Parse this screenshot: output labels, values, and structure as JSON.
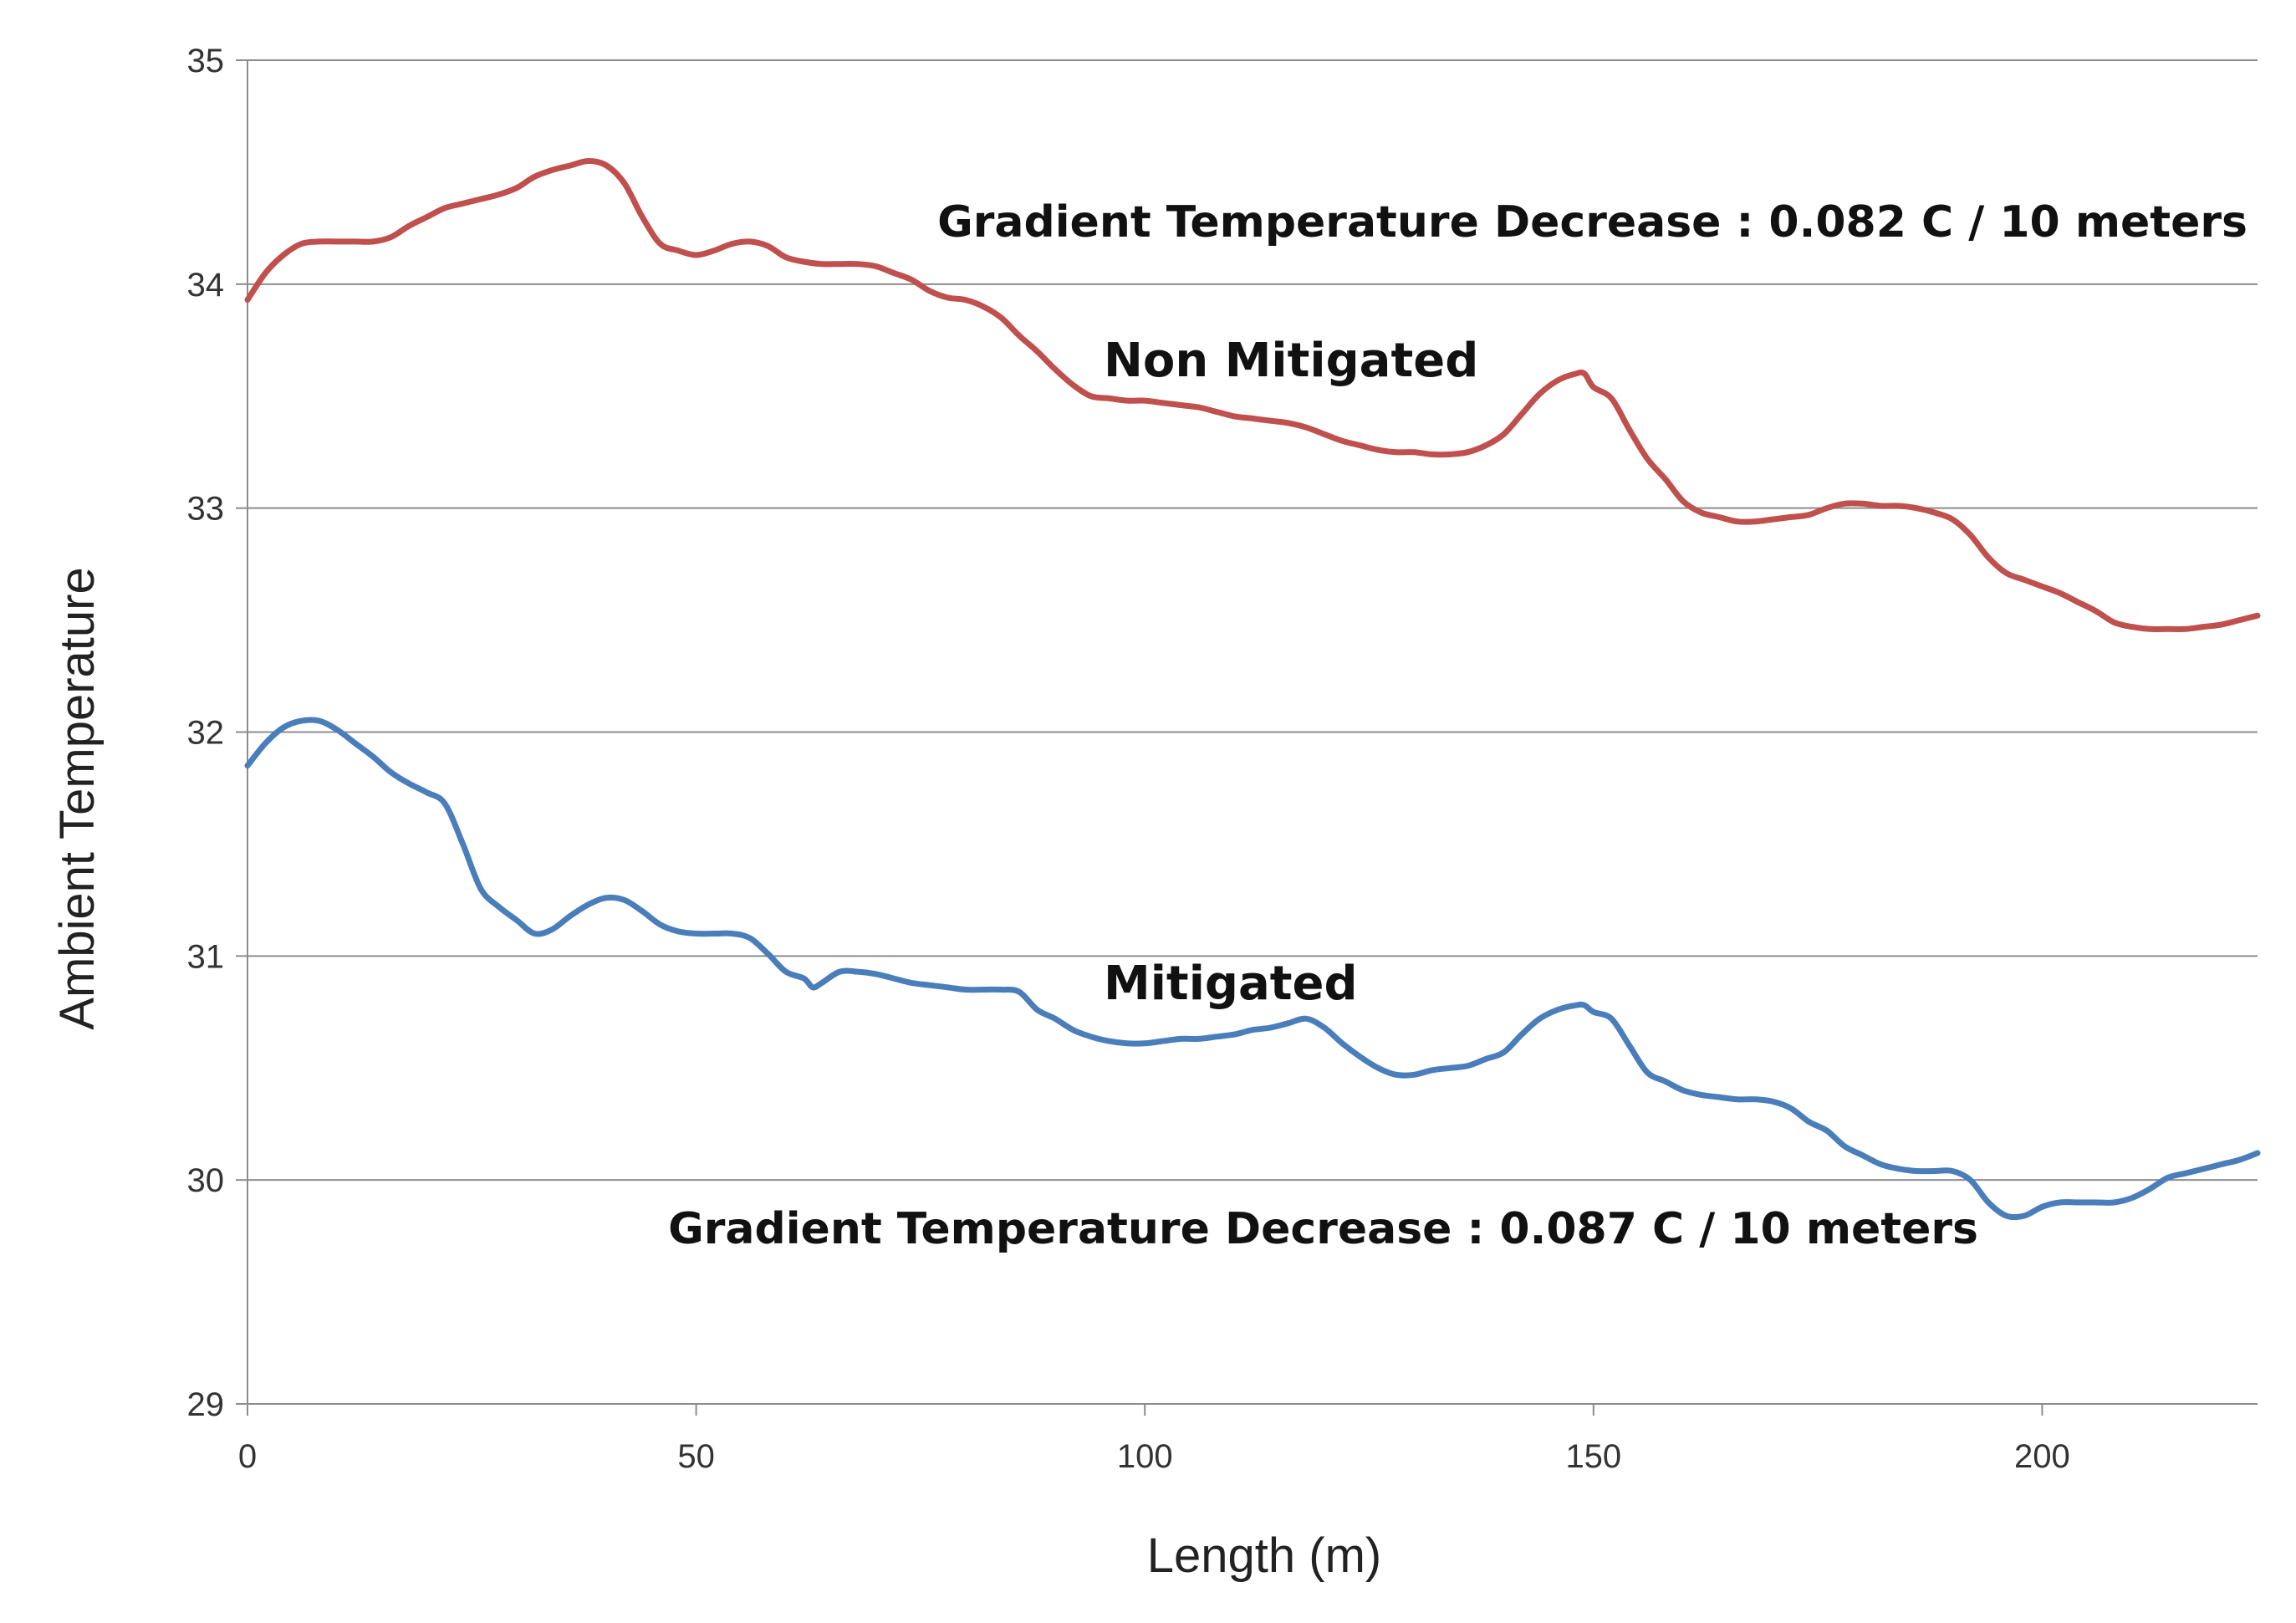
{
  "chart_data": {
    "type": "line",
    "title": "",
    "xlabel": "Length (m)",
    "ylabel": "Ambient Temperature",
    "xlim": [
      0,
      224
    ],
    "ylim": [
      29,
      35
    ],
    "grid": true,
    "x_ticks": [
      0,
      50,
      100,
      150,
      200
    ],
    "y_ticks": [
      29,
      30,
      31,
      32,
      33,
      34,
      35
    ],
    "series": [
      {
        "name": "Non Mitigated",
        "color": "#c0504d",
        "x": [
          0,
          2,
          4,
          6,
          8,
          10,
          12,
          14,
          16,
          18,
          20,
          22,
          24,
          26,
          28,
          30,
          32,
          34,
          36,
          38,
          40,
          42,
          44,
          46,
          48,
          50,
          52,
          54,
          56,
          58,
          60,
          62,
          64,
          66,
          68,
          70,
          72,
          74,
          76,
          78,
          80,
          82,
          84,
          86,
          88,
          90,
          92,
          94,
          96,
          98,
          100,
          102,
          104,
          106,
          108,
          110,
          112,
          114,
          116,
          118,
          120,
          122,
          124,
          126,
          128,
          130,
          132,
          134,
          136,
          138,
          140,
          142,
          144,
          146,
          148,
          149,
          150,
          152,
          154,
          156,
          158,
          160,
          162,
          164,
          166,
          168,
          170,
          172,
          174,
          176,
          178,
          180,
          182,
          184,
          186,
          188,
          190,
          192,
          194,
          196,
          198,
          200,
          202,
          204,
          206,
          208,
          210,
          212,
          214,
          216,
          218,
          220,
          222,
          224
        ],
        "values": [
          33.93,
          34.05,
          34.13,
          34.18,
          34.19,
          34.19,
          34.19,
          34.19,
          34.21,
          34.26,
          34.3,
          34.34,
          34.36,
          34.38,
          34.4,
          34.43,
          34.48,
          34.51,
          34.53,
          34.55,
          34.53,
          34.45,
          34.3,
          34.18,
          34.15,
          34.13,
          34.15,
          34.18,
          34.19,
          34.17,
          34.12,
          34.1,
          34.09,
          34.09,
          34.09,
          34.08,
          34.05,
          34.02,
          33.97,
          33.94,
          33.93,
          33.9,
          33.85,
          33.77,
          33.7,
          33.62,
          33.55,
          33.5,
          33.49,
          33.48,
          33.48,
          33.47,
          33.46,
          33.45,
          33.43,
          33.41,
          33.4,
          33.39,
          33.38,
          33.36,
          33.33,
          33.3,
          33.28,
          33.26,
          33.25,
          33.25,
          33.24,
          33.24,
          33.25,
          33.28,
          33.33,
          33.42,
          33.51,
          33.57,
          33.6,
          33.6,
          33.54,
          33.49,
          33.35,
          33.22,
          33.13,
          33.03,
          32.98,
          32.96,
          32.94,
          32.94,
          32.95,
          32.96,
          32.97,
          33.0,
          33.02,
          33.02,
          33.01,
          33.01,
          33.0,
          32.98,
          32.95,
          32.88,
          32.78,
          32.71,
          32.68,
          32.65,
          32.62,
          32.58,
          32.54,
          32.49,
          32.47,
          32.46,
          32.46,
          32.46,
          32.47,
          32.48,
          32.5,
          32.52
        ]
      },
      {
        "name": "Mitigated",
        "color": "#4a7ebb",
        "x": [
          0,
          2,
          4,
          6,
          8,
          10,
          12,
          14,
          16,
          18,
          20,
          22,
          24,
          26,
          28,
          30,
          32,
          34,
          36,
          38,
          40,
          42,
          44,
          46,
          48,
          50,
          52,
          54,
          56,
          58,
          60,
          62,
          63,
          64,
          66,
          68,
          70,
          72,
          74,
          76,
          78,
          80,
          82,
          84,
          86,
          88,
          90,
          92,
          94,
          96,
          98,
          100,
          102,
          104,
          106,
          108,
          110,
          112,
          114,
          116,
          118,
          120,
          122,
          124,
          126,
          128,
          130,
          132,
          134,
          136,
          138,
          140,
          142,
          144,
          146,
          148,
          149,
          150,
          152,
          154,
          156,
          158,
          160,
          162,
          164,
          166,
          168,
          170,
          172,
          174,
          176,
          178,
          180,
          182,
          184,
          186,
          188,
          190,
          192,
          194,
          196,
          198,
          200,
          202,
          204,
          206,
          208,
          210,
          212,
          214,
          216,
          218,
          220,
          222,
          224
        ],
        "values": [
          31.85,
          31.95,
          32.02,
          32.05,
          32.05,
          32.01,
          31.95,
          31.89,
          31.82,
          31.77,
          31.73,
          31.68,
          31.5,
          31.3,
          31.22,
          31.16,
          31.1,
          31.12,
          31.18,
          31.23,
          31.26,
          31.25,
          31.2,
          31.14,
          31.11,
          31.1,
          31.1,
          31.1,
          31.08,
          31.01,
          30.93,
          30.9,
          30.86,
          30.88,
          30.93,
          30.93,
          30.92,
          30.9,
          30.88,
          30.87,
          30.86,
          30.85,
          30.85,
          30.85,
          30.84,
          30.76,
          30.72,
          30.67,
          30.64,
          30.62,
          30.61,
          30.61,
          30.62,
          30.63,
          30.63,
          30.64,
          30.65,
          30.67,
          30.68,
          30.7,
          30.72,
          30.68,
          30.61,
          30.55,
          30.5,
          30.47,
          30.47,
          30.49,
          30.5,
          30.51,
          30.54,
          30.57,
          30.65,
          30.72,
          30.76,
          30.78,
          30.78,
          30.75,
          30.72,
          30.6,
          30.48,
          30.44,
          30.4,
          30.38,
          30.37,
          30.36,
          30.36,
          30.35,
          30.32,
          30.26,
          30.22,
          30.15,
          30.11,
          30.07,
          30.05,
          30.04,
          30.04,
          30.04,
          30.0,
          29.9,
          29.84,
          29.84,
          29.88,
          29.9,
          29.9,
          29.9,
          29.9,
          29.92,
          29.96,
          30.01,
          30.03,
          30.05,
          30.07,
          30.09,
          30.12
        ]
      }
    ],
    "annotations": [
      "Gradient Temperature Decrease : 0.082 C / 10 meters",
      "Gradient Temperature Decrease : 0.087 C / 10 meters"
    ]
  }
}
